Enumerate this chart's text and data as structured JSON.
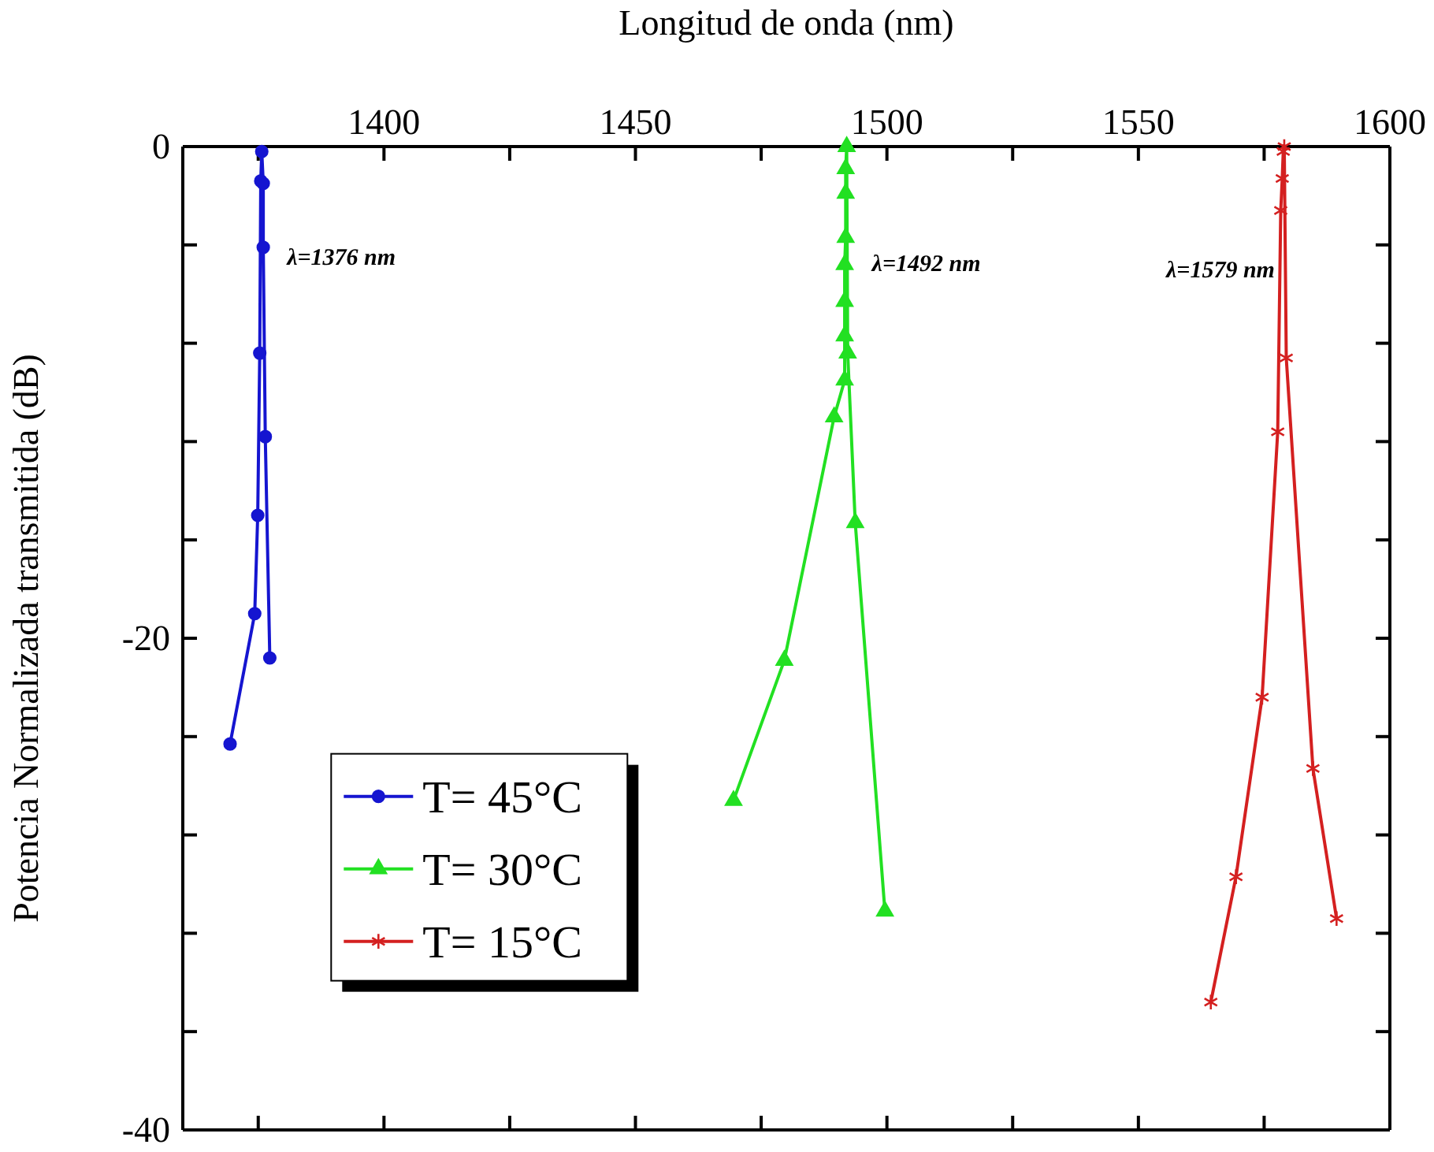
{
  "chart_data": {
    "type": "line",
    "xlabel": "Longitud de onda (nm)",
    "ylabel": "Potencia Normalizada transmitida  (dB)",
    "xlim": [
      1360,
      1600
    ],
    "ylim": [
      -40,
      0
    ],
    "xticks": [
      {
        "value": 1375,
        "label": null
      },
      1400,
      {
        "value": 1425,
        "label": null
      },
      1450,
      {
        "value": 1475,
        "label": null
      },
      1500,
      {
        "value": 1525,
        "label": null
      },
      1550,
      {
        "value": 1575,
        "label": null
      },
      1600
    ],
    "yticks": [
      -40,
      {
        "value": -36,
        "label": null
      },
      {
        "value": -32,
        "label": null
      },
      {
        "value": -28,
        "label": null
      },
      {
        "value": -24,
        "label": null
      },
      -20,
      {
        "value": -16,
        "label": null
      },
      {
        "value": -12,
        "label": null
      },
      {
        "value": -8,
        "label": null
      },
      {
        "value": -4,
        "label": null
      },
      0
    ],
    "grid": false,
    "legend": "bottom left",
    "series": [
      {
        "name": "T= 45°C",
        "color": "#1515d0",
        "marker": "circle",
        "x": [
          1369.4,
          1374.3,
          1374.9,
          1375.3,
          1375.5,
          1375.7,
          1376,
          1376,
          1376.4,
          1377.3
        ],
        "values": [
          -24.3,
          -19.0,
          -15.0,
          -8.4,
          -1.4,
          -0.2,
          -1.5,
          -4.1,
          -11.8,
          -20.8
        ]
      },
      {
        "name": "T= 30°C",
        "color": "#22e022",
        "marker": "triangle",
        "x": [
          1469.5,
          1479.6,
          1489.5,
          1491.6,
          1491.6,
          1491.6,
          1491.6,
          1491.8,
          1491.8,
          1491.8,
          1492,
          1492.2,
          1493.7,
          1499.6
        ],
        "values": [
          -26.6,
          -20.9,
          -11.0,
          -9.5,
          -7.7,
          -6.3,
          -4.8,
          -3.7,
          -1.9,
          -0.9,
          0,
          -8.4,
          -15.3,
          -31.1
        ]
      },
      {
        "name": "T= 15°C",
        "color": "#d42020",
        "marker": "cross",
        "x": [
          1564.4,
          1569.4,
          1574.6,
          1577.7,
          1578.3,
          1578.6,
          1578.8,
          1579,
          1579.4,
          1584.7,
          1589.4
        ],
        "values": [
          -34.8,
          -29.7,
          -22.4,
          -11.6,
          -2.6,
          -1.3,
          -0.2,
          0,
          -8.6,
          -25.3,
          -31.4
        ]
      }
    ],
    "annotations": [
      "λ=1376 nm",
      "λ=1492 nm",
      "λ=1579 nm"
    ]
  }
}
